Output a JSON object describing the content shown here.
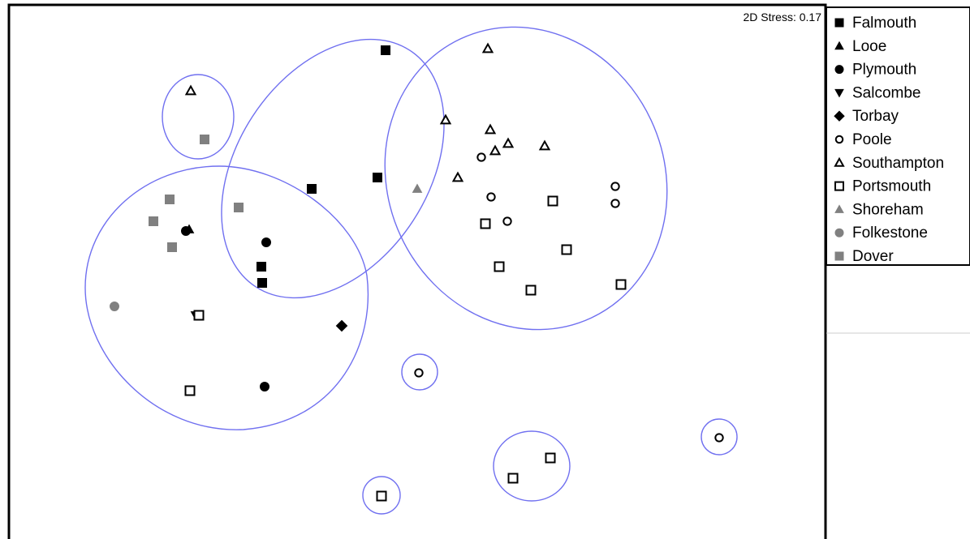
{
  "chart_data": {
    "type": "scatter",
    "stress_label": "2D Stress: 0.17",
    "colors": {
      "black": "#000000",
      "grey": "#808080",
      "ellipse": "#7070f0"
    },
    "legend": [
      {
        "name": "Falmouth",
        "marker": "square-filled",
        "color": "#000000"
      },
      {
        "name": "Looe",
        "marker": "triangle-filled",
        "color": "#000000"
      },
      {
        "name": "Plymouth",
        "marker": "circle-filled",
        "color": "#000000"
      },
      {
        "name": "Salcombe",
        "marker": "triangle-down-filled",
        "color": "#000000"
      },
      {
        "name": "Torbay",
        "marker": "diamond-filled",
        "color": "#000000"
      },
      {
        "name": "Poole",
        "marker": "circle-open",
        "color": "#000000"
      },
      {
        "name": "Southampton",
        "marker": "triangle-open",
        "color": "#000000"
      },
      {
        "name": "Portsmouth",
        "marker": "square-open",
        "color": "#000000"
      },
      {
        "name": "Shoreham",
        "marker": "triangle-filled",
        "color": "#808080"
      },
      {
        "name": "Folkestone",
        "marker": "circle-filled",
        "color": "#808080"
      },
      {
        "name": "Dover",
        "marker": "square-filled",
        "color": "#808080"
      }
    ],
    "series": [
      {
        "name": "Falmouth",
        "points": [
          [
            475,
            62
          ],
          [
            465,
            219
          ],
          [
            384,
            233
          ],
          [
            322,
            329
          ],
          [
            323,
            349
          ]
        ]
      },
      {
        "name": "Looe",
        "points": [
          [
            233,
            283
          ]
        ]
      },
      {
        "name": "Plymouth",
        "points": [
          [
            328,
            299
          ],
          [
            229,
            285
          ],
          [
            326,
            477
          ]
        ]
      },
      {
        "name": "Salcombe",
        "points": [
          [
            241,
            389
          ]
        ]
      },
      {
        "name": "Torbay",
        "points": [
          [
            421,
            402
          ]
        ]
      },
      {
        "name": "Poole",
        "points": [
          [
            593,
            194
          ],
          [
            605,
            243
          ],
          [
            625,
            273
          ],
          [
            758,
            230
          ],
          [
            758,
            251
          ],
          [
            516,
            460
          ],
          [
            886,
            540
          ]
        ]
      },
      {
        "name": "Southampton",
        "points": [
          [
            235,
            112
          ],
          [
            601,
            60
          ],
          [
            549,
            148
          ],
          [
            604,
            160
          ],
          [
            610,
            186
          ],
          [
            626,
            177
          ],
          [
            671,
            180
          ],
          [
            564,
            219
          ]
        ]
      },
      {
        "name": "Portsmouth",
        "points": [
          [
            681,
            248
          ],
          [
            598,
            276
          ],
          [
            698,
            308
          ],
          [
            615,
            329
          ],
          [
            654,
            358
          ],
          [
            765,
            351
          ],
          [
            245,
            389
          ],
          [
            234,
            482
          ],
          [
            678,
            565
          ],
          [
            632,
            590
          ],
          [
            470,
            612
          ]
        ]
      },
      {
        "name": "Shoreham",
        "points": [
          [
            514,
            233
          ]
        ]
      },
      {
        "name": "Folkestone",
        "points": [
          [
            141,
            378
          ]
        ]
      },
      {
        "name": "Dover",
        "points": [
          [
            252,
            172
          ],
          [
            209,
            246
          ],
          [
            294,
            256
          ],
          [
            189,
            273
          ],
          [
            212,
            305
          ]
        ]
      }
    ]
  }
}
